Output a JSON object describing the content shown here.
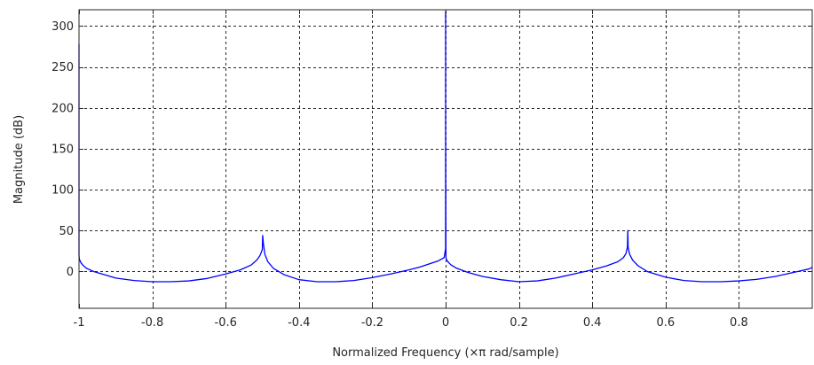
{
  "chart_data": {
    "type": "line",
    "title": "",
    "xlabel": "Normalized Frequency (×π rad/sample)",
    "ylabel": "Magnitude (dB)",
    "xlim": [
      -1,
      1
    ],
    "ylim": [
      -45,
      320
    ],
    "xticks": [
      -1,
      -0.8,
      -0.6,
      -0.4,
      -0.2,
      0,
      0.2,
      0.4,
      0.6,
      0.8
    ],
    "xtick_labels": [
      "-1",
      "-0.8",
      "-0.6",
      "-0.4",
      "-0.2",
      "0",
      "0.2",
      "0.4",
      "0.6",
      "0.8"
    ],
    "yticks": [
      0,
      50,
      100,
      150,
      200,
      250,
      300
    ],
    "ytick_labels": [
      "0",
      "50",
      "100",
      "150",
      "200",
      "250",
      "300"
    ],
    "grid": true,
    "grid_style": "dashed",
    "line_color": "#0000ff",
    "series": [
      {
        "x": [
          -1.0,
          -1.0,
          -0.999,
          -0.995,
          -0.99,
          -0.98,
          -0.96,
          -0.93,
          -0.9,
          -0.85,
          -0.8,
          -0.75,
          -0.7,
          -0.65,
          -0.6,
          -0.56,
          -0.53,
          -0.515,
          -0.507,
          -0.503,
          -0.5,
          -0.499,
          -0.497,
          -0.493,
          -0.485,
          -0.47,
          -0.44,
          -0.4,
          -0.35,
          -0.3,
          -0.25,
          -0.2,
          -0.15,
          -0.1,
          -0.07,
          -0.04,
          -0.02,
          -0.01,
          -0.004,
          0.0,
          0.0,
          0.0,
          0.001,
          0.003,
          0.008,
          0.015,
          0.03,
          0.06,
          0.1,
          0.15,
          0.2,
          0.25,
          0.3,
          0.35,
          0.4,
          0.44,
          0.47,
          0.485,
          0.492,
          0.496,
          0.497,
          0.498,
          0.502,
          0.51,
          0.525,
          0.55,
          0.6,
          0.65,
          0.7,
          0.75,
          0.8,
          0.85,
          0.9,
          0.93,
          0.96,
          0.99,
          1.0
        ],
        "y": [
          278,
          20,
          15,
          11,
          8,
          4,
          0,
          -4,
          -8,
          -11,
          -12.5,
          -12.5,
          -11.5,
          -8.5,
          -3,
          2,
          8,
          14,
          19,
          23,
          27,
          44,
          34,
          21,
          12,
          4,
          -4,
          -10,
          -12.5,
          -12.5,
          -11,
          -7.5,
          -3,
          2,
          5.5,
          10,
          13,
          15.5,
          17,
          28,
          318,
          177,
          17,
          14,
          11,
          8,
          4,
          -1,
          -6,
          -10,
          -12.5,
          -11.5,
          -8,
          -3,
          2,
          7,
          12,
          17,
          22,
          30,
          50,
          29,
          21,
          14,
          7,
          0,
          -7,
          -11,
          -12.5,
          -12.5,
          -11.5,
          -9.5,
          -6,
          -3,
          0,
          3,
          5
        ]
      }
    ]
  }
}
